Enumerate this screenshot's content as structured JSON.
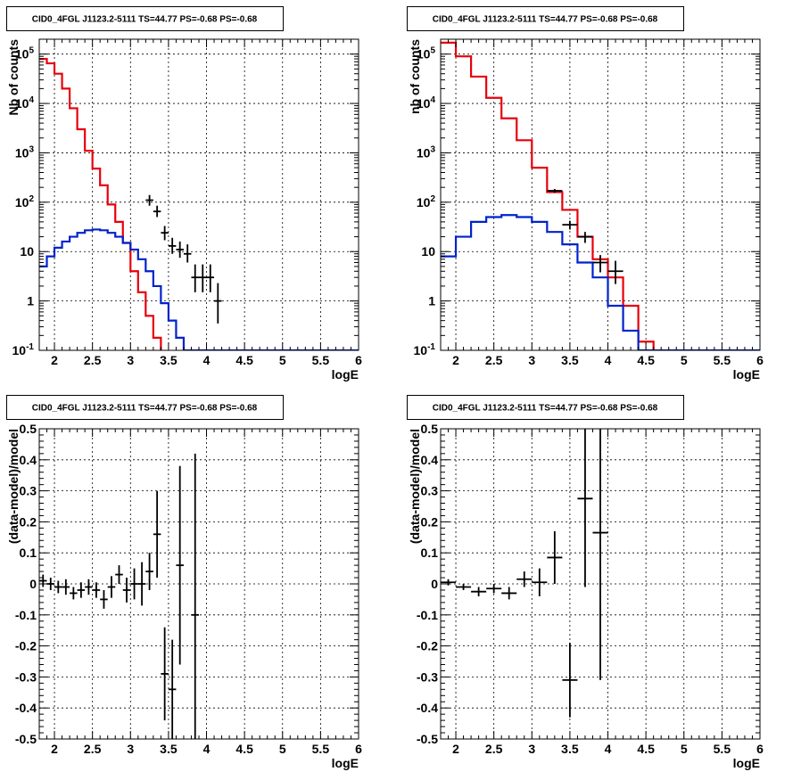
{
  "figure": {
    "background": "#ffffff"
  },
  "colors": {
    "model_total": "#e8000b",
    "model_source": "#0022cc",
    "data": "#000000",
    "grid": "#000000"
  },
  "chart_data": [
    {
      "id": "counts-fine",
      "type": "line",
      "title": "CID0_4FGL J1123.2-5111 TS=44.77 PS=-0.68 PS=-0.68",
      "xlabel": "logE",
      "ylabel": "Nb of counts",
      "xlim": [
        1.8,
        6.0
      ],
      "ylim": [
        0.1,
        200000
      ],
      "log_y": true,
      "grid": true,
      "xticks": [
        "2",
        "2.5",
        "3",
        "3.5",
        "4",
        "4.5",
        "5",
        "5.5",
        "6"
      ],
      "yticks": [
        {
          "v": 0.1,
          "label": "10",
          "exp": "-1"
        },
        {
          "v": 1,
          "label": "1",
          "exp": ""
        },
        {
          "v": 10,
          "label": "10",
          "exp": ""
        },
        {
          "v": 100,
          "label": "10",
          "exp": "2"
        },
        {
          "v": 1000,
          "label": "10",
          "exp": "3"
        },
        {
          "v": 10000,
          "label": "10",
          "exp": "4"
        },
        {
          "v": 100000,
          "label": "10",
          "exp": "5"
        }
      ],
      "bin_edges": [
        1.8,
        1.9,
        2.0,
        2.1,
        2.2,
        2.3,
        2.4,
        2.5,
        2.6,
        2.7,
        2.8,
        2.9,
        3.0,
        3.1,
        3.2,
        3.3,
        3.4,
        3.5,
        3.6,
        3.7,
        3.8,
        3.9,
        4.0,
        4.1,
        4.2,
        4.3,
        4.4,
        4.5,
        4.6,
        4.7,
        4.8,
        4.9,
        5.0,
        5.1,
        5.2,
        5.3,
        5.4,
        5.5,
        5.6,
        5.7,
        5.8,
        5.9,
        6.0
      ],
      "series": [
        {
          "kind": "step",
          "role": "total",
          "values": [
            80000,
            65000,
            40000,
            20000,
            8000,
            3000,
            1100,
            480,
            220,
            90,
            40,
            15,
            4,
            1.5,
            0.5,
            0.18,
            0.05,
            0.05,
            0.05,
            0.05,
            0.05,
            0.05,
            0.05,
            0.05,
            0.05,
            0.05,
            0.05,
            0.05,
            0.05,
            0.05,
            0.05,
            0.05,
            0.05,
            0.05,
            0.05,
            0.05,
            0.05,
            0.05,
            0.05,
            0.05,
            0.05,
            0.05
          ],
          "note_values": "per 0.1-wide bin in logE starting at 1.8"
        },
        {
          "kind": "step",
          "role": "source",
          "values": [
            5,
            8,
            12,
            16,
            20,
            24,
            27,
            28,
            27,
            24,
            20,
            15,
            11,
            7,
            4,
            2,
            0.9,
            0.4,
            0.18,
            0.1,
            0.1,
            0.1,
            0.1,
            0.1,
            0.1,
            0.1,
            0.1,
            0.1,
            0.1,
            0.1,
            0.1,
            0.1,
            0.1,
            0.1,
            0.1,
            0.1,
            0.1,
            0.1,
            0.1,
            0.1,
            0.1,
            0.1
          ]
        },
        {
          "kind": "points",
          "role": "data",
          "x": [
            3.25,
            3.35,
            3.45,
            3.55,
            3.65,
            3.75,
            3.85,
            3.95,
            4.05,
            4.15
          ],
          "y": [
            110,
            65,
            24,
            13,
            11,
            9,
            3,
            3,
            3,
            1
          ],
          "ylo": [
            85,
            50,
            17,
            9,
            7.5,
            6,
            1.5,
            1.5,
            1.5,
            0.35
          ],
          "yhi": [
            140,
            85,
            33,
            19,
            16,
            14,
            5.5,
            5.5,
            5.5,
            2.3
          ]
        }
      ]
    },
    {
      "id": "counts-coarse",
      "type": "line",
      "title": "CID0_4FGL J1123.2-5111 TS=44.77 PS=-0.68 PS=-0.68",
      "xlabel": "logE",
      "ylabel": "nb of counts",
      "xlim": [
        1.8,
        6.0
      ],
      "ylim": [
        0.1,
        200000
      ],
      "log_y": true,
      "grid": true,
      "xticks": [
        "2",
        "2.5",
        "3",
        "3.5",
        "4",
        "4.5",
        "5",
        "5.5",
        "6"
      ],
      "yticks": [
        {
          "v": 0.1,
          "label": "10",
          "exp": "-1"
        },
        {
          "v": 1,
          "label": "1",
          "exp": ""
        },
        {
          "v": 10,
          "label": "10",
          "exp": ""
        },
        {
          "v": 100,
          "label": "10",
          "exp": "2"
        },
        {
          "v": 1000,
          "label": "10",
          "exp": "3"
        },
        {
          "v": 10000,
          "label": "10",
          "exp": "4"
        },
        {
          "v": 100000,
          "label": "10",
          "exp": "5"
        }
      ],
      "bin_edges": [
        1.8,
        2.0,
        2.2,
        2.4,
        2.6,
        2.8,
        3.0,
        3.2,
        3.4,
        3.6,
        3.8,
        4.0,
        4.2,
        4.4,
        4.6,
        4.8,
        5.0,
        5.2,
        5.4,
        5.6,
        5.8,
        6.0
      ],
      "series": [
        {
          "kind": "step",
          "role": "total",
          "values": [
            170000,
            90000,
            35000,
            13000,
            5000,
            1800,
            500,
            160,
            70,
            20,
            7,
            3,
            0.8,
            0.15,
            0.05,
            0.05,
            0.05,
            0.05,
            0.05,
            0.05,
            0.05
          ]
        },
        {
          "kind": "step",
          "role": "source",
          "values": [
            8,
            20,
            40,
            50,
            55,
            50,
            40,
            25,
            14,
            6,
            3,
            0.8,
            0.25,
            0.1,
            0.1,
            0.1,
            0.1,
            0.1,
            0.1,
            0.1,
            0.1
          ]
        },
        {
          "kind": "points",
          "role": "data",
          "x": [
            3.3,
            3.5,
            3.7,
            3.9,
            4.1
          ],
          "y": [
            170,
            35,
            20,
            6,
            4
          ],
          "ylo": [
            155,
            28,
            15,
            3.8,
            2.2
          ],
          "yhi": [
            185,
            42,
            25,
            8.5,
            6.5
          ]
        }
      ]
    },
    {
      "id": "residual-fine",
      "type": "scatter",
      "title": "CID0_4FGL J1123.2-5111 TS=44.77 PS=-0.68 PS=-0.68",
      "xlabel": "logE",
      "ylabel": "(data-model)/model",
      "xlim": [
        1.8,
        6.0
      ],
      "ylim": [
        -0.5,
        0.5
      ],
      "grid": true,
      "xticks": [
        "2",
        "2.5",
        "3",
        "3.5",
        "4",
        "4.5",
        "5",
        "5.5",
        "6"
      ],
      "yticks": [
        "-0.5",
        "-0.4",
        "-0.3",
        "-0.2",
        "-0.1",
        "0",
        "0.1",
        "0.2",
        "0.3",
        "0.4",
        "0.5"
      ],
      "series": [
        {
          "kind": "points",
          "role": "data",
          "x": [
            1.85,
            1.95,
            2.05,
            2.15,
            2.25,
            2.35,
            2.45,
            2.55,
            2.65,
            2.75,
            2.85,
            2.95,
            3.05,
            3.15,
            3.25,
            3.35,
            3.45,
            3.55,
            3.65,
            3.85
          ],
          "y": [
            0.01,
            0.0,
            -0.01,
            -0.01,
            -0.03,
            -0.02,
            -0.01,
            -0.02,
            -0.05,
            -0.01,
            0.03,
            -0.02,
            0.0,
            0.0,
            0.04,
            0.16,
            -0.29,
            -0.34,
            0.06,
            -0.1
          ],
          "ylo": [
            -0.01,
            -0.02,
            -0.03,
            -0.035,
            -0.05,
            -0.045,
            -0.035,
            -0.045,
            -0.08,
            -0.045,
            0.0,
            -0.06,
            -0.05,
            -0.07,
            -0.02,
            0.02,
            -0.44,
            -0.5,
            -0.26,
            -0.5
          ],
          "yhi": [
            0.03,
            0.02,
            0.01,
            0.015,
            -0.01,
            0.005,
            0.015,
            0.005,
            -0.02,
            0.025,
            0.06,
            0.02,
            0.05,
            0.07,
            0.1,
            0.3,
            -0.14,
            -0.18,
            0.38,
            0.42
          ]
        }
      ]
    },
    {
      "id": "residual-coarse",
      "type": "scatter",
      "title": "CID0_4FGL J1123.2-5111 TS=44.77 PS=-0.68 PS=-0.68",
      "xlabel": "logE",
      "ylabel": "(data-model)/model",
      "xlim": [
        1.8,
        6.0
      ],
      "ylim": [
        -0.5,
        0.5
      ],
      "grid": true,
      "xticks": [
        "2",
        "2.5",
        "3",
        "3.5",
        "4",
        "4.5",
        "5",
        "5.5",
        "6"
      ],
      "yticks": [
        "-0.5",
        "-0.4",
        "-0.3",
        "-0.2",
        "-0.1",
        "0",
        "0.1",
        "0.2",
        "0.3",
        "0.4",
        "0.5"
      ],
      "series": [
        {
          "kind": "points",
          "role": "data",
          "x": [
            1.9,
            2.1,
            2.3,
            2.5,
            2.7,
            2.9,
            3.1,
            3.3,
            3.5,
            3.7,
            3.9
          ],
          "y": [
            0.005,
            -0.01,
            -0.025,
            -0.015,
            -0.03,
            0.015,
            0.005,
            0.085,
            -0.31,
            0.275,
            0.165
          ],
          "ylo": [
            -0.005,
            -0.02,
            -0.04,
            -0.03,
            -0.05,
            -0.01,
            -0.04,
            0.0,
            -0.43,
            -0.01,
            -0.31
          ],
          "yhi": [
            0.015,
            0.0,
            -0.01,
            0.0,
            -0.01,
            0.04,
            0.05,
            0.17,
            -0.19,
            0.5,
            0.5
          ]
        }
      ]
    }
  ]
}
